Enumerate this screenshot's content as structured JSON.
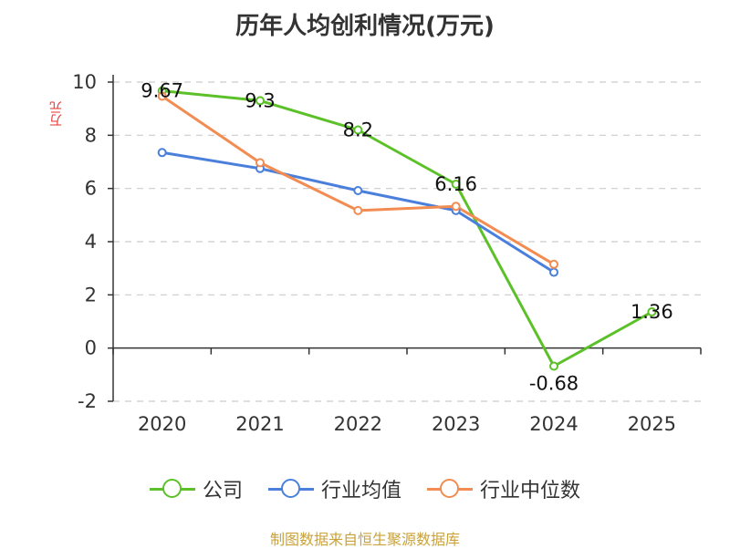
{
  "title": "历年人均创利情况(万元)",
  "source": "制图数据来自恒生聚源数据库",
  "chart_data": {
    "type": "line",
    "title": "历年人均创利情况(万元)",
    "ylabel": "万元",
    "xlabel": "",
    "categories": [
      "2020",
      "2021",
      "2022",
      "2023",
      "2024",
      "2025"
    ],
    "ylim": [
      -2,
      10
    ],
    "yticks": [
      -2,
      0,
      2,
      4,
      6,
      8,
      10
    ],
    "grid": true,
    "legend_position": "bottom",
    "series": [
      {
        "name": "公司",
        "color": "#5cc129",
        "values": [
          9.67,
          9.3,
          8.2,
          6.16,
          -0.68,
          1.36
        ],
        "labels": [
          "9.67",
          "9.3",
          "8.2",
          "6.16",
          "-0.68",
          "1.36"
        ]
      },
      {
        "name": "行业均值",
        "color": "#4a7fdc",
        "values": [
          7.35,
          6.75,
          5.92,
          5.17,
          2.85,
          null
        ]
      },
      {
        "name": "行业中位数",
        "color": "#f28c52",
        "values": [
          9.47,
          6.97,
          5.17,
          5.33,
          3.15,
          null
        ]
      }
    ]
  }
}
